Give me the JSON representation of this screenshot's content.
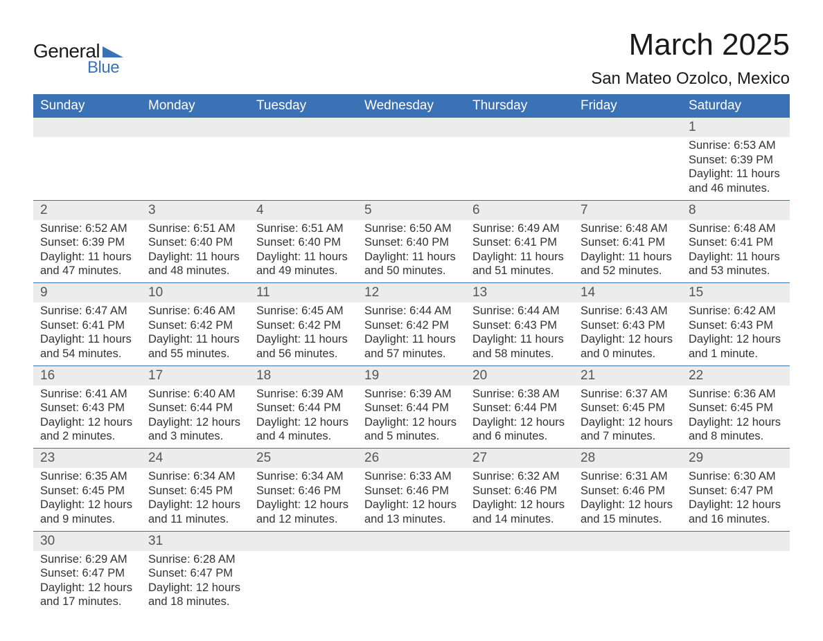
{
  "logo": {
    "word1": "General",
    "word2": "Blue",
    "shape_color": "#3b72b5",
    "text_color_dark": "#1a1a1a",
    "text_color_blue": "#3b72b5"
  },
  "title": "March 2025",
  "location": "San Mateo Ozolco, Mexico",
  "colors": {
    "header_bg": "#3b72b5",
    "header_text": "#ffffff",
    "daynum_bg": "#ececec",
    "daynum_text": "#555555",
    "body_text": "#333333",
    "row_divider": "#3b72b5",
    "page_bg": "#ffffff"
  },
  "typography": {
    "title_fontsize": 44,
    "location_fontsize": 24,
    "header_fontsize": 19,
    "daynum_fontsize": 19,
    "body_fontsize": 16.5,
    "font_family": "Arial"
  },
  "day_headers": [
    "Sunday",
    "Monday",
    "Tuesday",
    "Wednesday",
    "Thursday",
    "Friday",
    "Saturday"
  ],
  "weeks": [
    [
      null,
      null,
      null,
      null,
      null,
      null,
      {
        "n": "1",
        "sunrise": "Sunrise: 6:53 AM",
        "sunset": "Sunset: 6:39 PM",
        "day1": "Daylight: 11 hours",
        "day2": "and 46 minutes."
      }
    ],
    [
      {
        "n": "2",
        "sunrise": "Sunrise: 6:52 AM",
        "sunset": "Sunset: 6:39 PM",
        "day1": "Daylight: 11 hours",
        "day2": "and 47 minutes."
      },
      {
        "n": "3",
        "sunrise": "Sunrise: 6:51 AM",
        "sunset": "Sunset: 6:40 PM",
        "day1": "Daylight: 11 hours",
        "day2": "and 48 minutes."
      },
      {
        "n": "4",
        "sunrise": "Sunrise: 6:51 AM",
        "sunset": "Sunset: 6:40 PM",
        "day1": "Daylight: 11 hours",
        "day2": "and 49 minutes."
      },
      {
        "n": "5",
        "sunrise": "Sunrise: 6:50 AM",
        "sunset": "Sunset: 6:40 PM",
        "day1": "Daylight: 11 hours",
        "day2": "and 50 minutes."
      },
      {
        "n": "6",
        "sunrise": "Sunrise: 6:49 AM",
        "sunset": "Sunset: 6:41 PM",
        "day1": "Daylight: 11 hours",
        "day2": "and 51 minutes."
      },
      {
        "n": "7",
        "sunrise": "Sunrise: 6:48 AM",
        "sunset": "Sunset: 6:41 PM",
        "day1": "Daylight: 11 hours",
        "day2": "and 52 minutes."
      },
      {
        "n": "8",
        "sunrise": "Sunrise: 6:48 AM",
        "sunset": "Sunset: 6:41 PM",
        "day1": "Daylight: 11 hours",
        "day2": "and 53 minutes."
      }
    ],
    [
      {
        "n": "9",
        "sunrise": "Sunrise: 6:47 AM",
        "sunset": "Sunset: 6:41 PM",
        "day1": "Daylight: 11 hours",
        "day2": "and 54 minutes."
      },
      {
        "n": "10",
        "sunrise": "Sunrise: 6:46 AM",
        "sunset": "Sunset: 6:42 PM",
        "day1": "Daylight: 11 hours",
        "day2": "and 55 minutes."
      },
      {
        "n": "11",
        "sunrise": "Sunrise: 6:45 AM",
        "sunset": "Sunset: 6:42 PM",
        "day1": "Daylight: 11 hours",
        "day2": "and 56 minutes."
      },
      {
        "n": "12",
        "sunrise": "Sunrise: 6:44 AM",
        "sunset": "Sunset: 6:42 PM",
        "day1": "Daylight: 11 hours",
        "day2": "and 57 minutes."
      },
      {
        "n": "13",
        "sunrise": "Sunrise: 6:44 AM",
        "sunset": "Sunset: 6:43 PM",
        "day1": "Daylight: 11 hours",
        "day2": "and 58 minutes."
      },
      {
        "n": "14",
        "sunrise": "Sunrise: 6:43 AM",
        "sunset": "Sunset: 6:43 PM",
        "day1": "Daylight: 12 hours",
        "day2": "and 0 minutes."
      },
      {
        "n": "15",
        "sunrise": "Sunrise: 6:42 AM",
        "sunset": "Sunset: 6:43 PM",
        "day1": "Daylight: 12 hours",
        "day2": "and 1 minute."
      }
    ],
    [
      {
        "n": "16",
        "sunrise": "Sunrise: 6:41 AM",
        "sunset": "Sunset: 6:43 PM",
        "day1": "Daylight: 12 hours",
        "day2": "and 2 minutes."
      },
      {
        "n": "17",
        "sunrise": "Sunrise: 6:40 AM",
        "sunset": "Sunset: 6:44 PM",
        "day1": "Daylight: 12 hours",
        "day2": "and 3 minutes."
      },
      {
        "n": "18",
        "sunrise": "Sunrise: 6:39 AM",
        "sunset": "Sunset: 6:44 PM",
        "day1": "Daylight: 12 hours",
        "day2": "and 4 minutes."
      },
      {
        "n": "19",
        "sunrise": "Sunrise: 6:39 AM",
        "sunset": "Sunset: 6:44 PM",
        "day1": "Daylight: 12 hours",
        "day2": "and 5 minutes."
      },
      {
        "n": "20",
        "sunrise": "Sunrise: 6:38 AM",
        "sunset": "Sunset: 6:44 PM",
        "day1": "Daylight: 12 hours",
        "day2": "and 6 minutes."
      },
      {
        "n": "21",
        "sunrise": "Sunrise: 6:37 AM",
        "sunset": "Sunset: 6:45 PM",
        "day1": "Daylight: 12 hours",
        "day2": "and 7 minutes."
      },
      {
        "n": "22",
        "sunrise": "Sunrise: 6:36 AM",
        "sunset": "Sunset: 6:45 PM",
        "day1": "Daylight: 12 hours",
        "day2": "and 8 minutes."
      }
    ],
    [
      {
        "n": "23",
        "sunrise": "Sunrise: 6:35 AM",
        "sunset": "Sunset: 6:45 PM",
        "day1": "Daylight: 12 hours",
        "day2": "and 9 minutes."
      },
      {
        "n": "24",
        "sunrise": "Sunrise: 6:34 AM",
        "sunset": "Sunset: 6:45 PM",
        "day1": "Daylight: 12 hours",
        "day2": "and 11 minutes."
      },
      {
        "n": "25",
        "sunrise": "Sunrise: 6:34 AM",
        "sunset": "Sunset: 6:46 PM",
        "day1": "Daylight: 12 hours",
        "day2": "and 12 minutes."
      },
      {
        "n": "26",
        "sunrise": "Sunrise: 6:33 AM",
        "sunset": "Sunset: 6:46 PM",
        "day1": "Daylight: 12 hours",
        "day2": "and 13 minutes."
      },
      {
        "n": "27",
        "sunrise": "Sunrise: 6:32 AM",
        "sunset": "Sunset: 6:46 PM",
        "day1": "Daylight: 12 hours",
        "day2": "and 14 minutes."
      },
      {
        "n": "28",
        "sunrise": "Sunrise: 6:31 AM",
        "sunset": "Sunset: 6:46 PM",
        "day1": "Daylight: 12 hours",
        "day2": "and 15 minutes."
      },
      {
        "n": "29",
        "sunrise": "Sunrise: 6:30 AM",
        "sunset": "Sunset: 6:47 PM",
        "day1": "Daylight: 12 hours",
        "day2": "and 16 minutes."
      }
    ],
    [
      {
        "n": "30",
        "sunrise": "Sunrise: 6:29 AM",
        "sunset": "Sunset: 6:47 PM",
        "day1": "Daylight: 12 hours",
        "day2": "and 17 minutes."
      },
      {
        "n": "31",
        "sunrise": "Sunrise: 6:28 AM",
        "sunset": "Sunset: 6:47 PM",
        "day1": "Daylight: 12 hours",
        "day2": "and 18 minutes."
      },
      null,
      null,
      null,
      null,
      null
    ]
  ]
}
